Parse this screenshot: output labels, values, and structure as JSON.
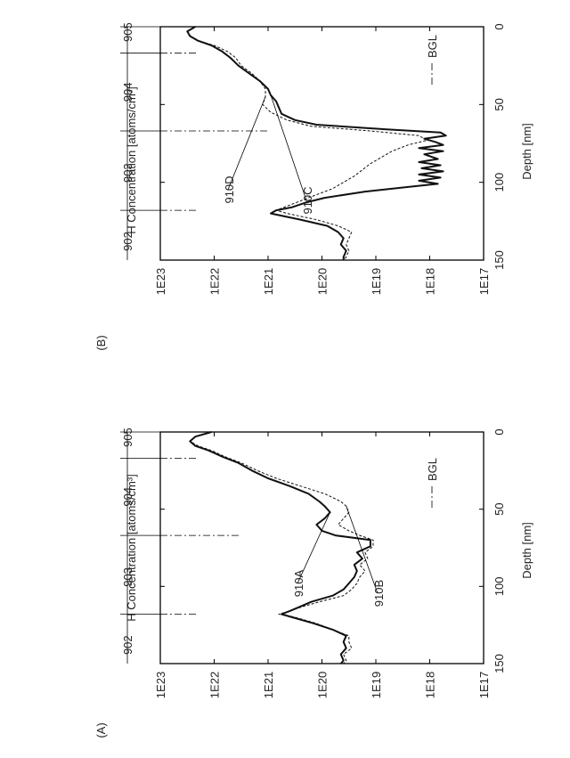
{
  "chart_data": [
    {
      "panel_label": "(A)",
      "type": "line",
      "xlabel": "Depth [nm]",
      "ylabel": "H Concentration [atoms/cm³]",
      "xlim": [
        0,
        150
      ],
      "ylim_exponent": [
        17,
        23
      ],
      "y_log_scale": true,
      "x_ticks": [
        "0",
        "50",
        "100",
        "150"
      ],
      "y_ticks": [
        "1E17",
        "1E18",
        "1E19",
        "1E20",
        "1E21",
        "1E22",
        "1E23"
      ],
      "region_labels": [
        {
          "text": "905",
          "x": 3.5
        },
        {
          "text": "904",
          "x": 42
        },
        {
          "text": "903",
          "x": 94
        },
        {
          "text": "902",
          "x": 138
        }
      ],
      "boundaries": [
        17,
        67,
        118
      ],
      "bgl_label": "BGL",
      "series": [
        {
          "name": "910A",
          "style": "solid",
          "x": [
            0,
            3,
            6,
            9,
            12,
            16,
            20,
            25,
            30,
            35,
            40,
            45,
            48,
            52,
            56,
            60,
            64,
            67,
            70,
            74,
            78,
            82,
            86,
            90,
            94,
            98,
            102,
            106,
            110,
            113,
            116,
            118,
            120,
            124,
            128,
            132,
            136,
            140,
            144,
            148,
            150
          ],
          "y": [
            22.05,
            22.35,
            22.45,
            22.35,
            22.1,
            21.85,
            21.55,
            21.3,
            21.0,
            20.6,
            20.25,
            20.05,
            19.95,
            19.85,
            19.95,
            20.1,
            20.0,
            19.75,
            19.1,
            19.1,
            19.35,
            19.25,
            19.4,
            19.35,
            19.4,
            19.5,
            19.6,
            19.8,
            20.2,
            20.4,
            20.6,
            20.75,
            20.55,
            20.15,
            19.8,
            19.55,
            19.6,
            19.55,
            19.65,
            19.6,
            19.65
          ]
        },
        {
          "name": "910B",
          "style": "dashed",
          "x": [
            0,
            3,
            6,
            9,
            12,
            16,
            20,
            25,
            30,
            35,
            40,
            45,
            48,
            52,
            56,
            60,
            64,
            67,
            70,
            74,
            78,
            82,
            86,
            90,
            94,
            98,
            102,
            106,
            110,
            113,
            116,
            118,
            120,
            124,
            128,
            132,
            136,
            140,
            144,
            148,
            150
          ],
          "y": [
            22.05,
            22.35,
            22.45,
            22.3,
            22.05,
            21.8,
            21.5,
            21.2,
            20.85,
            20.4,
            19.95,
            19.65,
            19.55,
            19.5,
            19.6,
            19.7,
            19.5,
            19.3,
            19.05,
            19.05,
            19.2,
            19.15,
            19.3,
            19.2,
            19.3,
            19.35,
            19.45,
            19.6,
            20.05,
            20.35,
            20.6,
            20.8,
            20.5,
            20.1,
            19.8,
            19.5,
            19.5,
            19.45,
            19.6,
            19.55,
            19.6
          ]
        }
      ]
    },
    {
      "panel_label": "(B)",
      "type": "line",
      "xlabel": "Depth [nm]",
      "ylabel": "H Concentration [atoms/cm³]",
      "xlim": [
        0,
        150
      ],
      "ylim_exponent": [
        17,
        23
      ],
      "y_log_scale": true,
      "x_ticks": [
        "0",
        "50",
        "100",
        "150"
      ],
      "y_ticks": [
        "1E17",
        "1E18",
        "1E19",
        "1E20",
        "1E21",
        "1E22",
        "1E23"
      ],
      "region_labels": [
        {
          "text": "905",
          "x": 3.5
        },
        {
          "text": "904",
          "x": 42
        },
        {
          "text": "903",
          "x": 94
        },
        {
          "text": "902",
          "x": 138
        }
      ],
      "boundaries": [
        17,
        67,
        118
      ],
      "bgl_label": "BGL",
      "series": [
        {
          "name": "910C",
          "style": "solid",
          "x": [
            0,
            3,
            6,
            9,
            12,
            16,
            20,
            25,
            30,
            35,
            40,
            44,
            48,
            52,
            56,
            60,
            63,
            66,
            68,
            70,
            72,
            74,
            76,
            78,
            80,
            82,
            85,
            87,
            89,
            91,
            93,
            95,
            97,
            99,
            101,
            103,
            106,
            110,
            113,
            116,
            118,
            120,
            124,
            128,
            132,
            136,
            140,
            144,
            148,
            150
          ],
          "y": [
            22.35,
            22.5,
            22.45,
            22.3,
            22.05,
            21.85,
            21.7,
            21.55,
            21.35,
            21.15,
            21.0,
            20.95,
            20.85,
            20.8,
            20.75,
            20.5,
            20.1,
            18.8,
            17.8,
            17.7,
            18.1,
            17.9,
            17.75,
            18.2,
            17.75,
            18.1,
            17.85,
            18.2,
            17.8,
            18.15,
            17.75,
            18.2,
            17.8,
            18.2,
            17.85,
            18.4,
            19.2,
            19.95,
            20.3,
            20.55,
            20.85,
            20.95,
            20.4,
            19.9,
            19.7,
            19.6,
            19.65,
            19.55,
            19.6,
            19.6
          ]
        },
        {
          "name": "910D",
          "style": "dashed",
          "x": [
            0,
            3,
            6,
            9,
            12,
            16,
            20,
            25,
            30,
            35,
            40,
            45,
            50,
            55,
            60,
            64,
            67,
            70,
            73,
            76,
            80,
            84,
            88,
            92,
            96,
            100,
            104,
            108,
            112,
            116,
            118,
            120,
            124,
            128,
            132,
            136,
            140,
            144,
            148,
            150
          ],
          "y": [
            22.35,
            22.5,
            22.45,
            22.3,
            22.0,
            21.75,
            21.6,
            21.5,
            21.3,
            21.15,
            21.05,
            21.05,
            21.1,
            20.95,
            20.65,
            20.2,
            19.1,
            18.2,
            18.05,
            18.4,
            18.7,
            18.9,
            19.1,
            19.25,
            19.4,
            19.6,
            19.8,
            20.1,
            20.4,
            20.7,
            20.85,
            20.65,
            20.1,
            19.7,
            19.45,
            19.5,
            19.55,
            19.5,
            19.55,
            19.6
          ]
        }
      ]
    }
  ]
}
